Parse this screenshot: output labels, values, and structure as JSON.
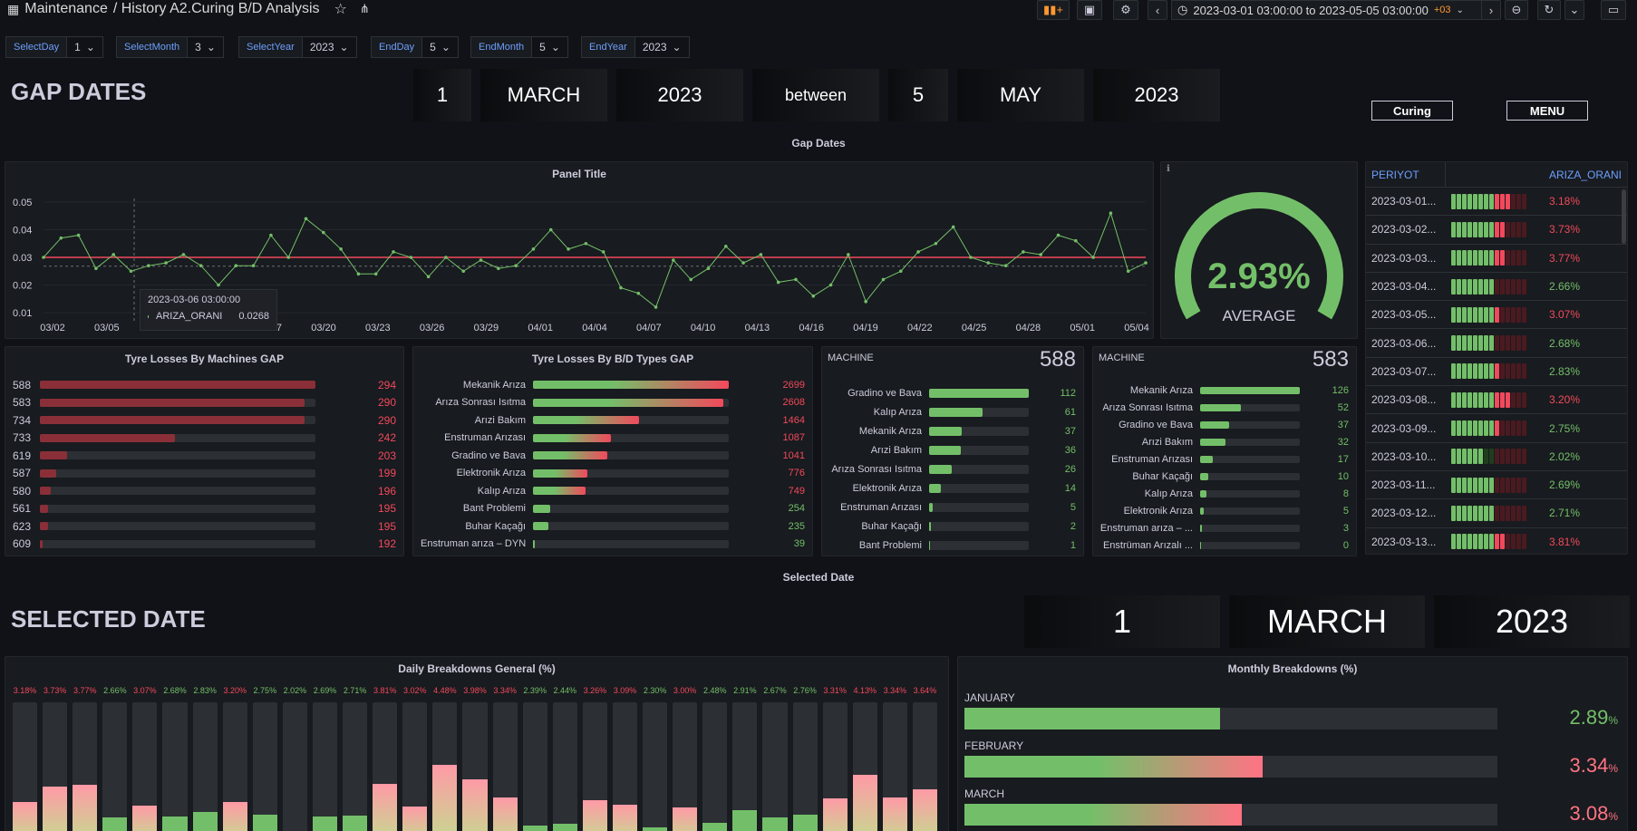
{
  "header": {
    "app": "Maintenance",
    "path": "/ History A2.Curing B/D Analysis",
    "time_range": "2023-03-01 03:00:00 to 2023-05-05 03:00:00",
    "tz": "+03"
  },
  "variables": [
    {
      "label": "SelectDay",
      "value": "1"
    },
    {
      "label": "SelectMonth",
      "value": "3"
    },
    {
      "label": "SelectYear",
      "value": "2023"
    },
    {
      "label": "EndDay",
      "value": "5"
    },
    {
      "label": "EndMonth",
      "value": "5"
    },
    {
      "label": "EndYear",
      "value": "2023"
    }
  ],
  "gap": {
    "title": "GAP DATES",
    "boxes": [
      "1",
      "MARCH",
      "2023",
      "between",
      "5",
      "MAY",
      "2023"
    ],
    "row_title": "Gap Dates",
    "link_curing": "Curing",
    "link_menu": "MENU"
  },
  "line_panel": {
    "title": "Panel Title",
    "tooltip_time": "2023-03-06 03:00:00",
    "tooltip_series": "ARIZA_ORANI",
    "tooltip_value": "0.0268",
    "threshold": 0.03,
    "xticks": [
      "03/02",
      "03/05",
      "",
      "",
      "03/17",
      "03/20",
      "03/23",
      "03/26",
      "03/29",
      "04/01",
      "04/04",
      "04/07",
      "04/10",
      "04/13",
      "04/16",
      "04/19",
      "04/22",
      "04/25",
      "04/28",
      "05/01",
      "05/04"
    ],
    "ylabels": [
      "0.05",
      "0.04",
      "0.03",
      "0.02",
      "0.01"
    ],
    "values": [
      0.03,
      0.037,
      0.038,
      0.026,
      0.031,
      0.025,
      0.027,
      0.028,
      0.031,
      0.027,
      0.02,
      0.027,
      0.027,
      0.038,
      0.03,
      0.044,
      0.039,
      0.033,
      0.024,
      0.024,
      0.032,
      0.03,
      0.023,
      0.03,
      0.025,
      0.029,
      0.026,
      0.027,
      0.033,
      0.04,
      0.033,
      0.035,
      0.032,
      0.019,
      0.017,
      0.012,
      0.029,
      0.022,
      0.026,
      0.034,
      0.028,
      0.031,
      0.021,
      0.022,
      0.016,
      0.02,
      0.031,
      0.014,
      0.022,
      0.025,
      0.032,
      0.035,
      0.041,
      0.03,
      0.028,
      0.027,
      0.032,
      0.031,
      0.038,
      0.036,
      0.03,
      0.046,
      0.025,
      0.028
    ]
  },
  "gauge": {
    "value": "2.93%",
    "label": "AVERAGE",
    "fraction": 0.73
  },
  "periyot": {
    "col1": "PERIYOT",
    "col2": "ARIZA_ORANI",
    "rows": [
      {
        "d": "2023-03-01...",
        "v": "3.18%",
        "g": 11,
        "c": "#f2495c"
      },
      {
        "d": "2023-03-02...",
        "v": "3.73%",
        "g": 10,
        "c": "#f2495c"
      },
      {
        "d": "2023-03-03...",
        "v": "3.77%",
        "g": 10,
        "c": "#f2495c"
      },
      {
        "d": "2023-03-04...",
        "v": "2.66%",
        "g": 8,
        "c": "#73bf69"
      },
      {
        "d": "2023-03-05...",
        "v": "3.07%",
        "g": 9,
        "c": "#f2495c"
      },
      {
        "d": "2023-03-06...",
        "v": "2.68%",
        "g": 8,
        "c": "#73bf69"
      },
      {
        "d": "2023-03-07...",
        "v": "2.83%",
        "g": 9,
        "c": "#73bf69"
      },
      {
        "d": "2023-03-08...",
        "v": "3.20%",
        "g": 11,
        "c": "#f2495c"
      },
      {
        "d": "2023-03-09...",
        "v": "2.75%",
        "g": 9,
        "c": "#73bf69"
      },
      {
        "d": "2023-03-10...",
        "v": "2.02%",
        "g": 6,
        "c": "#73bf69"
      },
      {
        "d": "2023-03-11...",
        "v": "2.69%",
        "g": 8,
        "c": "#73bf69"
      },
      {
        "d": "2023-03-12...",
        "v": "2.71%",
        "g": 8,
        "c": "#73bf69"
      },
      {
        "d": "2023-03-13...",
        "v": "3.81%",
        "g": 10,
        "c": "#f2495c"
      }
    ]
  },
  "machines_gap": {
    "title": "Tyre Losses By Machines GAP",
    "rows": [
      {
        "k": "588",
        "v": "294",
        "p": 1.0
      },
      {
        "k": "583",
        "v": "290",
        "p": 0.96
      },
      {
        "k": "734",
        "v": "290",
        "p": 0.96
      },
      {
        "k": "733",
        "v": "242",
        "p": 0.49
      },
      {
        "k": "619",
        "v": "203",
        "p": 0.1
      },
      {
        "k": "587",
        "v": "199",
        "p": 0.06
      },
      {
        "k": "580",
        "v": "196",
        "p": 0.04
      },
      {
        "k": "561",
        "v": "195",
        "p": 0.03
      },
      {
        "k": "623",
        "v": "195",
        "p": 0.03
      },
      {
        "k": "609",
        "v": "192",
        "p": 0.01
      }
    ]
  },
  "types_gap": {
    "title": "Tyre Losses By B/D Types GAP",
    "rows": [
      {
        "k": "Mekanik Arıza",
        "v": "2699",
        "p": 1.0,
        "c": "#f2495c"
      },
      {
        "k": "Arıza Sonrası Isıtma",
        "v": "2608",
        "p": 0.97,
        "c": "#f2495c"
      },
      {
        "k": "Arızi Bakım",
        "v": "1464",
        "p": 0.54,
        "c": "#f2495c"
      },
      {
        "k": "Enstruman Arızası",
        "v": "1087",
        "p": 0.4,
        "c": "#f2495c"
      },
      {
        "k": "Gradino ve Bava",
        "v": "1041",
        "p": 0.38,
        "c": "#f2495c"
      },
      {
        "k": "Elektronik Arıza",
        "v": "776",
        "p": 0.28,
        "c": "#f2495c"
      },
      {
        "k": "Kalıp Arıza",
        "v": "749",
        "p": 0.27,
        "c": "#f2495c"
      },
      {
        "k": "Bant Problemi",
        "v": "254",
        "p": 0.09,
        "c": "#73bf69"
      },
      {
        "k": "Buhar Kaçağı",
        "v": "235",
        "p": 0.08,
        "c": "#73bf69"
      },
      {
        "k": "Enstruman arıza – DYN",
        "v": "39",
        "p": 0.01,
        "c": "#73bf69"
      }
    ]
  },
  "machine1": {
    "label": "MACHINE",
    "value": "588",
    "rows": [
      {
        "k": "Gradino ve Bava",
        "v": "112",
        "p": 1.0
      },
      {
        "k": "Kalıp Arıza",
        "v": "61",
        "p": 0.54
      },
      {
        "k": "Mekanik Arıza",
        "v": "37",
        "p": 0.33
      },
      {
        "k": "Arızi Bakım",
        "v": "36",
        "p": 0.32
      },
      {
        "k": "Arıza Sonrası Isıtma",
        "v": "26",
        "p": 0.23
      },
      {
        "k": "Elektronik Arıza",
        "v": "14",
        "p": 0.12
      },
      {
        "k": "Enstruman Arızası",
        "v": "5",
        "p": 0.04
      },
      {
        "k": "Buhar Kaçağı",
        "v": "2",
        "p": 0.02
      },
      {
        "k": "Bant Problemi",
        "v": "1",
        "p": 0.01
      }
    ]
  },
  "machine2": {
    "label": "MACHINE",
    "value": "583",
    "rows": [
      {
        "k": "Mekanik Arıza",
        "v": "126",
        "p": 1.0
      },
      {
        "k": "Arıza Sonrası Isıtma",
        "v": "52",
        "p": 0.41
      },
      {
        "k": "Gradino ve Bava",
        "v": "37",
        "p": 0.29
      },
      {
        "k": "Arızi Bakım",
        "v": "32",
        "p": 0.25
      },
      {
        "k": "Enstruman Arızası",
        "v": "17",
        "p": 0.13
      },
      {
        "k": "Buhar Kaçağı",
        "v": "10",
        "p": 0.08
      },
      {
        "k": "Kalıp Arıza",
        "v": "8",
        "p": 0.06
      },
      {
        "k": "Elektronik Arıza",
        "v": "5",
        "p": 0.04
      },
      {
        "k": "Enstruman arıza – ...",
        "v": "3",
        "p": 0.02
      },
      {
        "k": "Enstrüman Arızalı ...",
        "v": "0",
        "p": 0.0
      }
    ]
  },
  "selected": {
    "row_title": "Selected Date",
    "title": "SELECTED DATE",
    "boxes": [
      "1",
      "MARCH",
      "2023"
    ]
  },
  "daily": {
    "title": "Daily Breakdowns General (%)",
    "labels": [
      "3.18%",
      "3.73%",
      "3.77%",
      "2.66%",
      "3.07%",
      "2.68%",
      "2.83%",
      "3.20%",
      "2.75%",
      "2.02%",
      "2.69%",
      "2.71%",
      "3.81%",
      "3.02%",
      "4.48%",
      "3.98%",
      "3.34%",
      "2.39%",
      "2.44%",
      "3.26%",
      "3.09%",
      "2.30%",
      "3.00%",
      "2.48%",
      "2.91%",
      "2.67%",
      "2.76%",
      "3.31%",
      "4.13%",
      "3.34%",
      "3.64%"
    ],
    "values": [
      3.18,
      3.73,
      3.77,
      2.66,
      3.07,
      2.68,
      2.83,
      3.2,
      2.75,
      2.02,
      2.69,
      2.71,
      3.81,
      3.02,
      4.48,
      3.98,
      3.34,
      2.39,
      2.44,
      3.26,
      3.09,
      2.3,
      3.0,
      2.48,
      2.91,
      2.67,
      2.76,
      3.31,
      4.13,
      3.34,
      3.64
    ]
  },
  "monthly": {
    "title": "Monthly Breakdowns (%)",
    "rows": [
      {
        "k": "JANUARY",
        "v": "2.89",
        "p": 0.48,
        "c": "#73bf69"
      },
      {
        "k": "FEBRUARY",
        "v": "3.34",
        "p": 0.56,
        "c": "#ff7383"
      },
      {
        "k": "MARCH",
        "v": "3.08",
        "p": 0.52,
        "c": "#ff7383"
      }
    ],
    "unit": "%"
  }
}
